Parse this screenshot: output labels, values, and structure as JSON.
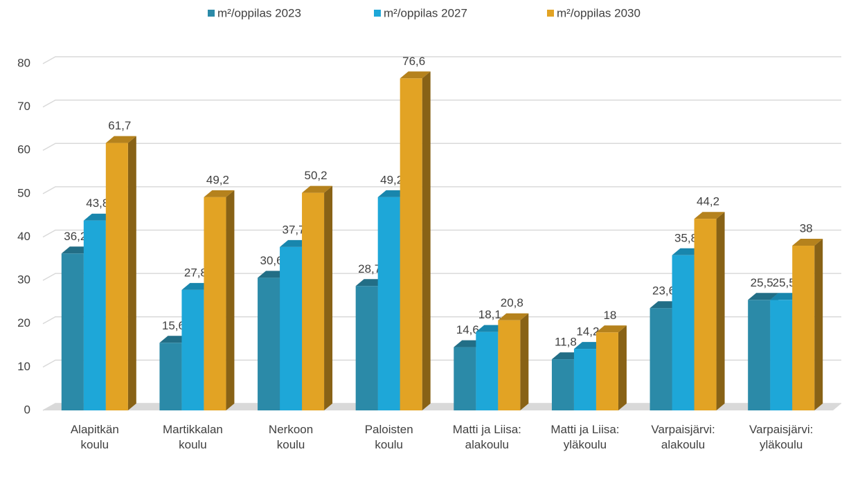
{
  "chart_data": {
    "type": "bar3d",
    "categories": [
      "Alapitkän koulu",
      "Martikkalan koulu",
      "Nerkoon koulu",
      "Paloisten koulu",
      "Matti ja Liisa: alakoulu",
      "Matti ja Liisa: yläkoulu",
      "Varpaisjärvi: alakoulu",
      "Varpaisjärvi: yläkoulu"
    ],
    "series": [
      {
        "name": "m²/oppilas 2023",
        "color": "#2b8aa8",
        "values": [
          36.2,
          15.6,
          30.6,
          28.7,
          14.6,
          11.8,
          23.6,
          25.5
        ],
        "value_labels": [
          "36,2",
          "15,6",
          "30,6",
          "28,7",
          "14,6",
          "11,8",
          "23,6",
          "25,5"
        ]
      },
      {
        "name": "m²/oppilas 2027",
        "color": "#1ea7d8",
        "values": [
          43.8,
          27.8,
          37.7,
          49.2,
          18.1,
          14.2,
          35.8,
          25.5
        ],
        "value_labels": [
          "43,8",
          "27,8",
          "37,7",
          "49,2",
          "18,1",
          "14,2",
          "35,8",
          "25,5"
        ]
      },
      {
        "name": "m²/oppilas 2030",
        "color": "#e2a324",
        "values": [
          61.7,
          49.2,
          50.2,
          76.6,
          20.8,
          18,
          44.2,
          38
        ],
        "value_labels": [
          "61,7",
          "49,2",
          "50,2",
          "76,6",
          "20,8",
          "18",
          "44,2",
          "38"
        ]
      }
    ],
    "ylim": [
      0,
      80
    ],
    "yticks": [
      0,
      10,
      20,
      30,
      40,
      50,
      60,
      70,
      80
    ],
    "grid": true,
    "legend": "top"
  }
}
